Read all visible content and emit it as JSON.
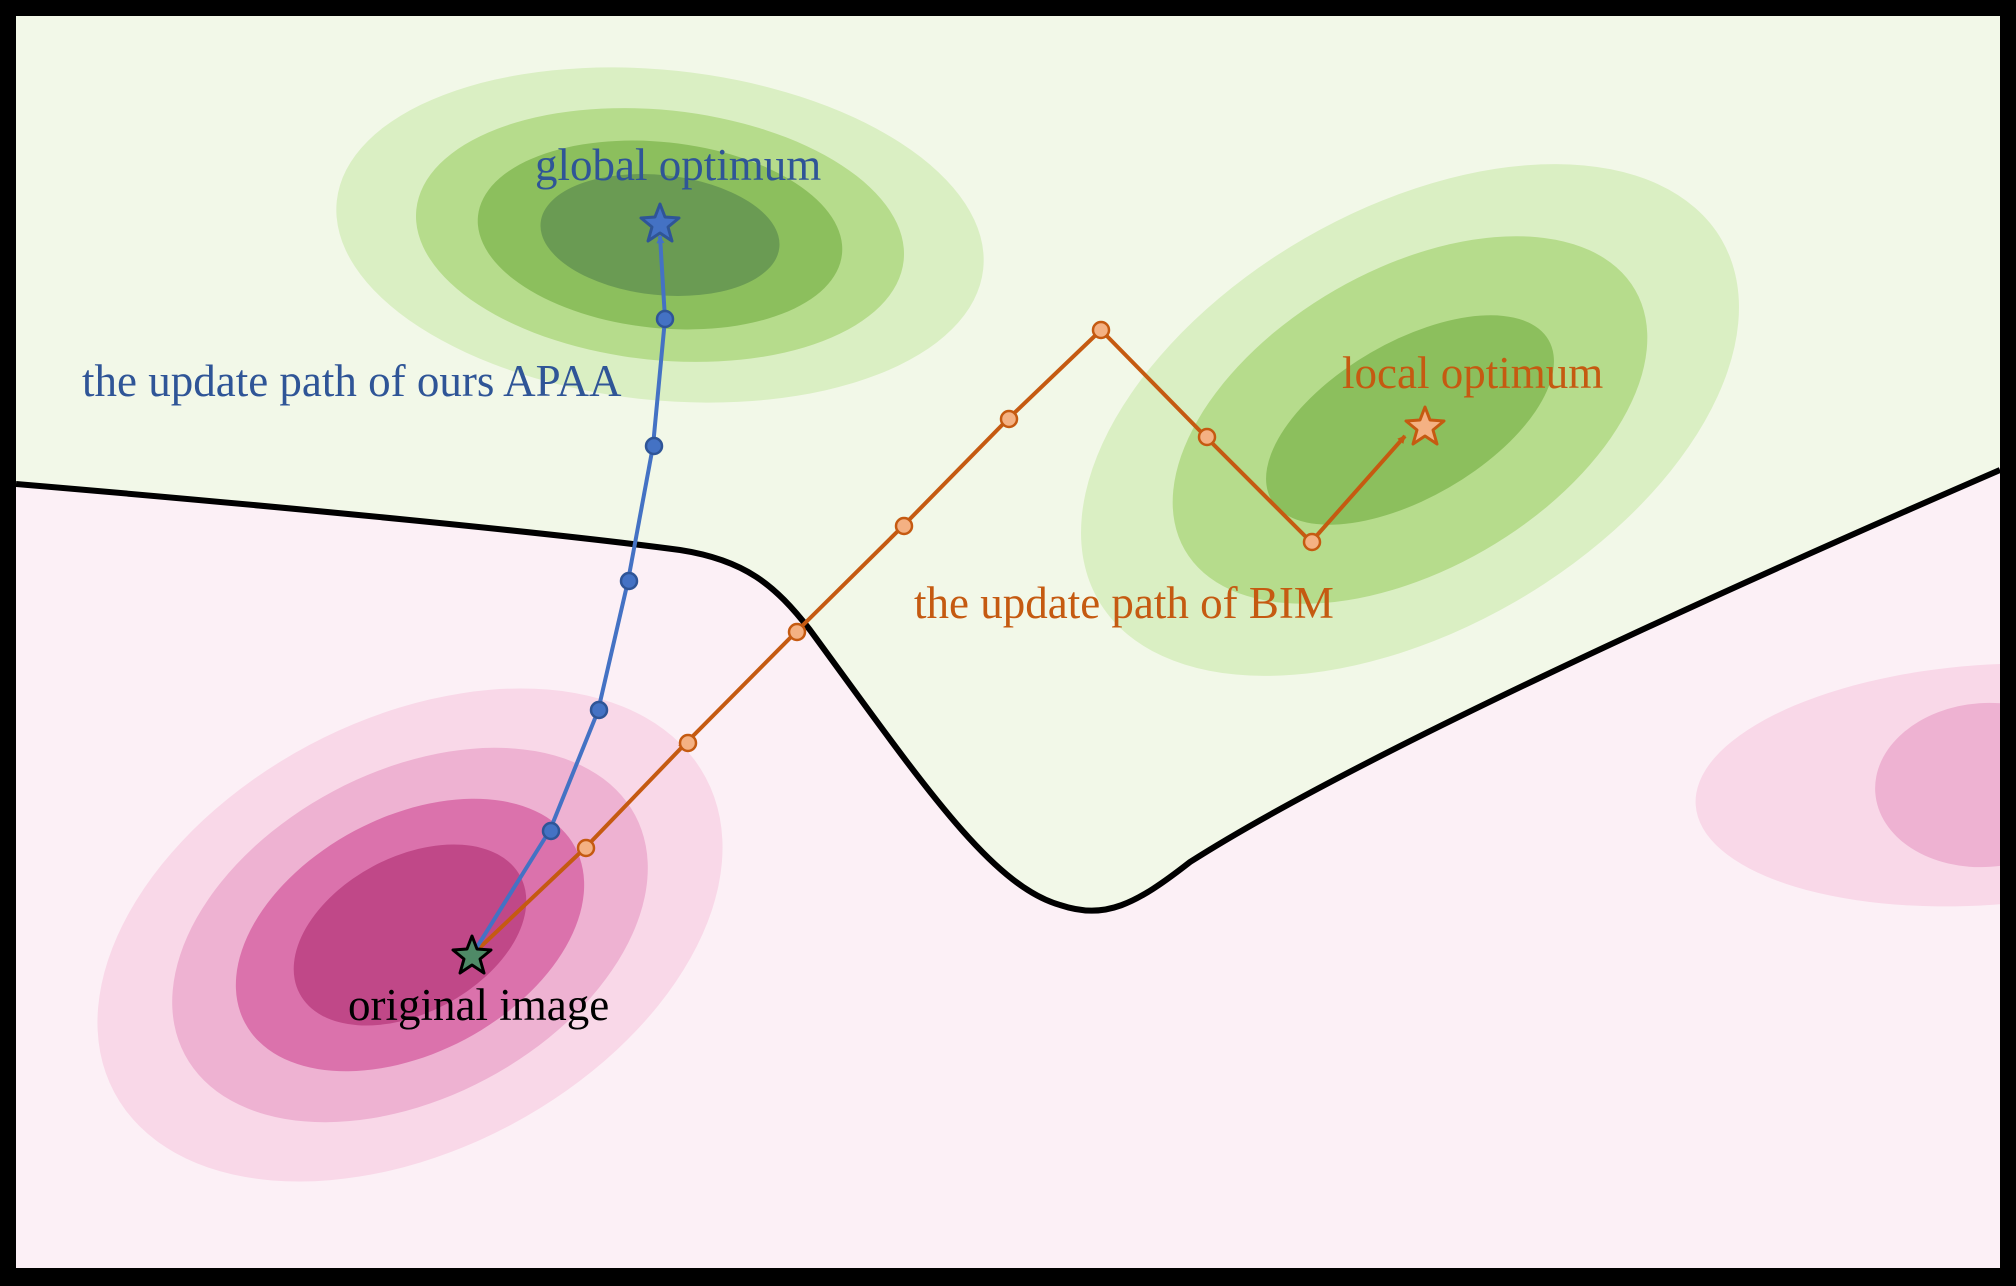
{
  "labels": {
    "global_optimum": "global optimum",
    "local_optimum": "local optimum",
    "apaa_path": "the update path of ours APAA",
    "bim_path": "the update path of BIM",
    "original_image": "original image"
  },
  "colors": {
    "apaa": "#4472c4",
    "bim": "#c55a11",
    "bim_marker": "#f4b183",
    "label_blue": "#2f5597",
    "green_region": "#f2f8e8",
    "pink_region": "#fcf0f6",
    "boundary": "#000000"
  },
  "icons": {
    "start": "star-icon",
    "global": "star-icon",
    "local": "star-icon"
  }
}
